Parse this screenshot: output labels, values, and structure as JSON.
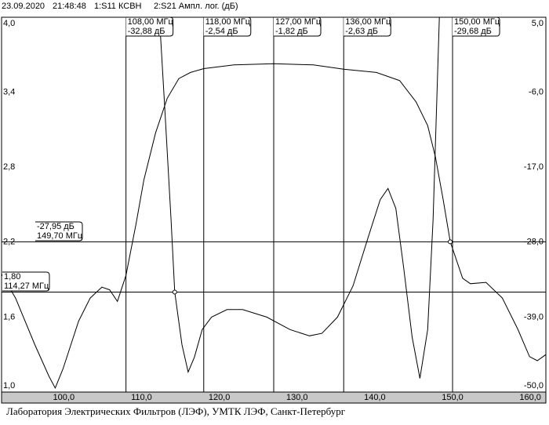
{
  "header": {
    "date": "23.09.2020",
    "time": "21:48:48",
    "trace1": "1:S11 КСВН",
    "trace2": "2:S21 Ампл. лог. (дБ)"
  },
  "chart_data": {
    "type": "line",
    "xlim": [
      92,
      162
    ],
    "xticks": [
      {
        "value": 100,
        "label": "100,0"
      },
      {
        "value": 110,
        "label": "110,0"
      },
      {
        "value": 120,
        "label": "120,0"
      },
      {
        "value": 130,
        "label": "130,0"
      },
      {
        "value": 140,
        "label": "140,0"
      },
      {
        "value": 150,
        "label": "150,0"
      },
      {
        "value": 160,
        "label": "160,0"
      }
    ],
    "ylim": [
      1,
      4
    ],
    "yticks": [
      {
        "value": 1,
        "label": "1,0"
      },
      {
        "value": 1.6,
        "label": "1,6"
      },
      {
        "value": 2.2,
        "label": "2,2"
      },
      {
        "value": 2.8,
        "label": "2,8"
      },
      {
        "value": 3.4,
        "label": "3,4"
      },
      {
        "value": 4,
        "label": "4,0"
      }
    ],
    "y2lim": [
      -50,
      5
    ],
    "y2ticks": [
      {
        "value": 5,
        "label": "5,0"
      },
      {
        "value": -6,
        "label": "-6,0"
      },
      {
        "value": -17,
        "label": "-17,0"
      },
      {
        "value": -28,
        "label": "-28,0"
      },
      {
        "value": -39,
        "label": "-39,0"
      },
      {
        "value": -50,
        "label": "-50,0"
      }
    ],
    "series": [
      {
        "name": "1:S11 КСВН",
        "color": "#000000",
        "axis": "y",
        "x": [
          112.3,
          113.0,
          113.8,
          114.27,
          115.2,
          116.0,
          116.8,
          117.8,
          119.0,
          121.0,
          123.0,
          126.1,
          129.1,
          131.6,
          133.2,
          135.2,
          137.2,
          139.2,
          140.7,
          141.7,
          142.7,
          143.7,
          144.8,
          145.8,
          146.8,
          147.5,
          148.3
        ],
        "values": [
          4.0,
          3.26,
          2.38,
          1.8,
          1.38,
          1.16,
          1.28,
          1.5,
          1.6,
          1.66,
          1.66,
          1.6,
          1.5,
          1.45,
          1.47,
          1.6,
          1.85,
          2.25,
          2.54,
          2.63,
          2.47,
          2.0,
          1.44,
          1.11,
          1.5,
          2.38,
          4.0
        ]
      },
      {
        "name": "2:S21 Ампл. лог. (дБ)",
        "color": "#000000",
        "axis": "y2",
        "x": [
          92.0,
          93.8,
          96.3,
          98.1,
          98.9,
          99.9,
          101.9,
          103.4,
          104.9,
          105.9,
          106.9,
          108.0,
          109.3,
          110.3,
          111.8,
          113.3,
          114.8,
          116.3,
          118.0,
          121.9,
          127.0,
          132.1,
          136.0,
          140.2,
          143.2,
          145.3,
          146.8,
          147.8,
          148.8,
          149.7,
          151.3,
          152.3,
          154.3,
          156.4,
          158.4,
          159.9,
          160.9,
          162.0
        ],
        "values": [
          -32.7,
          -36.2,
          -43.1,
          -47.7,
          -49.4,
          -46.6,
          -39.6,
          -36.2,
          -34.6,
          -35.0,
          -36.7,
          -32.88,
          -25.3,
          -18.9,
          -12.0,
          -6.9,
          -4.0,
          -3.1,
          -2.54,
          -2.0,
          -1.82,
          -2.0,
          -2.63,
          -3.1,
          -4.3,
          -7.4,
          -10.9,
          -15.5,
          -21.8,
          -27.95,
          -33.3,
          -34.1,
          -33.9,
          -36.2,
          -40.8,
          -44.8,
          -45.4,
          -44.5
        ]
      }
    ],
    "markers": [
      {
        "x": {
          "value": 108,
          "label": "108,00 МГц"
        },
        "y": {
          "value": -32.88,
          "label": "-32,88 дБ"
        }
      },
      {
        "x": {
          "value": 118,
          "label": "118,00 МГц"
        },
        "y": {
          "value": -2.54,
          "label": "-2,54 дБ"
        }
      },
      {
        "x": {
          "value": 127,
          "label": "127,00 МГц"
        },
        "y": {
          "value": -1.82,
          "label": "-1,82 дБ"
        }
      },
      {
        "x": {
          "value": 136,
          "label": "136,00 МГц"
        },
        "y": {
          "value": -2.63,
          "label": "-2,63 дБ"
        }
      },
      {
        "x": {
          "value": 150,
          "label": "150,00 МГц"
        },
        "y": {
          "value": -29.68,
          "label": "-29,68 дБ"
        }
      }
    ],
    "readouts": [
      {
        "axis": "y",
        "y": {
          "value": 1.8,
          "label": "1,80"
        },
        "x": {
          "value": 114.27,
          "label": "114,27 МГц"
        }
      },
      {
        "axis": "y2",
        "y": {
          "value": -27.95,
          "label": "-27,95 дБ"
        },
        "x": {
          "value": 149.7,
          "label": "149,70 МГц"
        }
      }
    ]
  },
  "footer": "Лаборатория Электрических Фильтров (ЛЭФ), УМТК ЛЭФ, Санкт-Петербург"
}
